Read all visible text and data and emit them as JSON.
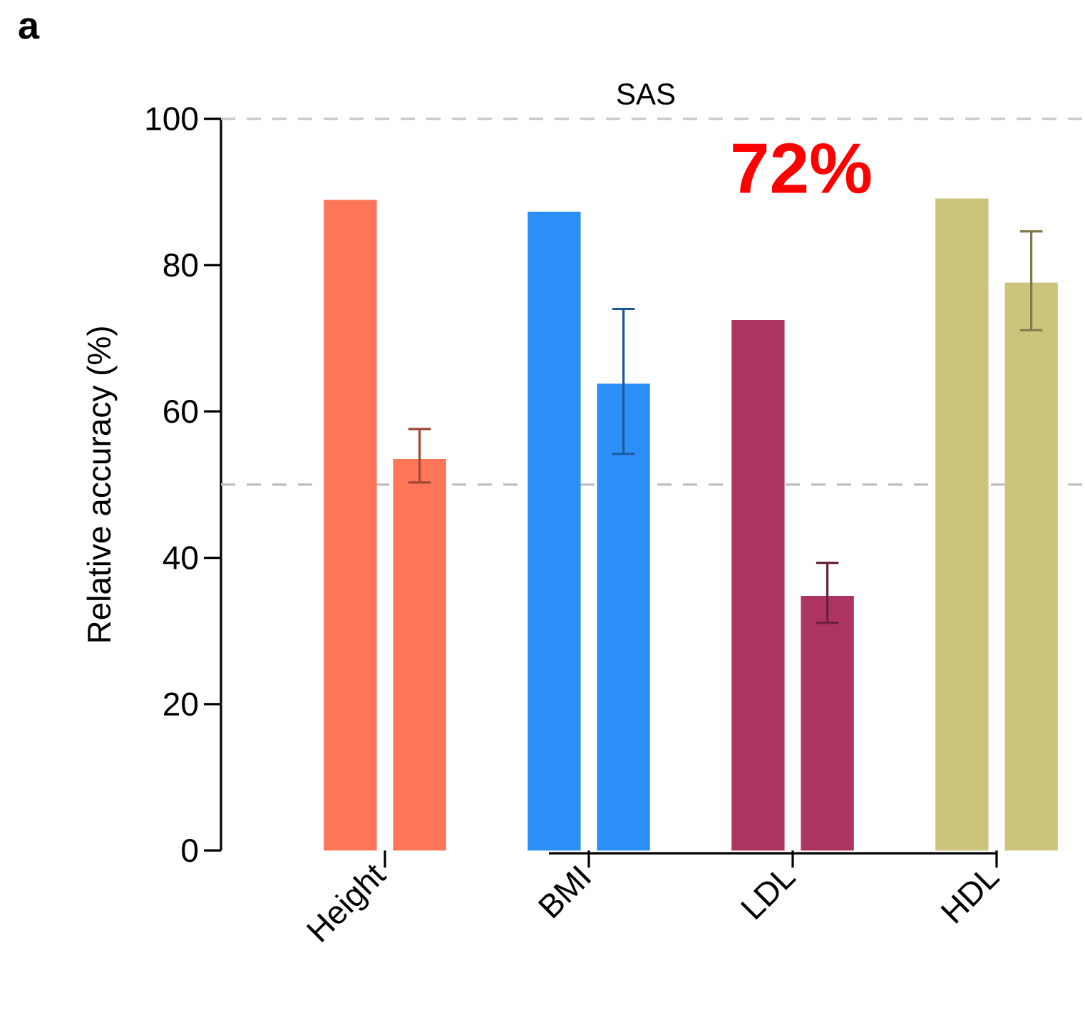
{
  "chart_data": {
    "type": "bar",
    "title": "SAS",
    "ylabel": "Relative accuracy (%)",
    "categories": [
      "Height",
      "BMI",
      "LDL",
      "HDL"
    ],
    "series": [
      {
        "colors": [
          "#ff7557",
          "#2b8ff8",
          "#ad3462",
          "#ccc47a"
        ],
        "values": [
          88.9,
          87.3,
          72.5,
          89.1
        ]
      },
      {
        "colors": [
          "#ff7557",
          "#2b8ff8",
          "#ad3462",
          "#ccc47a"
        ],
        "values": [
          53.5,
          63.8,
          34.8,
          77.6
        ],
        "errors": [
          [
            50.3,
            57.6
          ],
          [
            54.2,
            74.0
          ],
          [
            31.1,
            39.3
          ],
          [
            71.1,
            84.6
          ]
        ]
      }
    ],
    "ylim": [
      0,
      100
    ],
    "yticks": [
      0,
      20,
      40,
      60,
      80,
      100
    ],
    "ref_lines": [
      {
        "axis": "y",
        "value": 100,
        "color": "#c8c8c8",
        "line_style": "dashed"
      },
      {
        "axis": "y",
        "value": 50,
        "color": "#bdbdbd",
        "line_style": "dashed"
      }
    ],
    "annotations": [
      "a",
      "72%"
    ]
  }
}
